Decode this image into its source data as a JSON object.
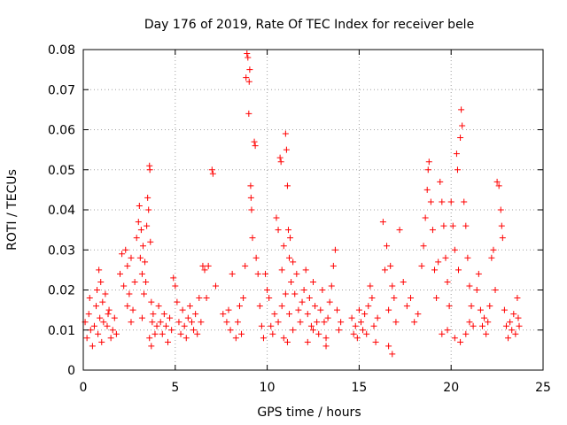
{
  "chart_data": {
    "type": "scatter",
    "title": "Day 176 of 2019, Rate Of TEC Index for receiver bele",
    "xlabel": "GPS time / hours",
    "ylabel": "ROTI / TECUs",
    "xlim": [
      0,
      25
    ],
    "ylim": [
      0,
      0.08
    ],
    "xticks": [
      0,
      5,
      10,
      15,
      20,
      25
    ],
    "yticks": [
      0,
      0.01,
      0.02,
      0.03,
      0.04,
      0.05,
      0.06,
      0.07,
      0.08
    ],
    "ytick_labels": [
      "0",
      "0.01",
      "0.02",
      "0.03",
      "0.04",
      "0.05",
      "0.06",
      "0.07",
      "0.08"
    ],
    "grid": true,
    "legend": "none",
    "marker": "+",
    "color": "#ff0000",
    "series": [
      {
        "points": [
          [
            0.1,
            0.012
          ],
          [
            0.2,
            0.008
          ],
          [
            0.3,
            0.014
          ],
          [
            0.4,
            0.01
          ],
          [
            0.5,
            0.006
          ],
          [
            0.6,
            0.011
          ],
          [
            0.7,
            0.016
          ],
          [
            0.8,
            0.009
          ],
          [
            0.9,
            0.013
          ],
          [
            1.0,
            0.007
          ],
          [
            1.1,
            0.012
          ],
          [
            1.2,
            0.019
          ],
          [
            1.3,
            0.011
          ],
          [
            1.4,
            0.015
          ],
          [
            1.5,
            0.008
          ],
          [
            1.6,
            0.01
          ],
          [
            1.7,
            0.013
          ],
          [
            1.8,
            0.009
          ],
          [
            0.35,
            0.018
          ],
          [
            0.75,
            0.02
          ],
          [
            0.85,
            0.025
          ],
          [
            0.95,
            0.022
          ],
          [
            1.05,
            0.017
          ],
          [
            1.35,
            0.014
          ],
          [
            2.0,
            0.024
          ],
          [
            2.1,
            0.029
          ],
          [
            2.2,
            0.021
          ],
          [
            2.3,
            0.03
          ],
          [
            2.4,
            0.026
          ],
          [
            2.5,
            0.019
          ],
          [
            2.6,
            0.028
          ],
          [
            2.7,
            0.015
          ],
          [
            2.8,
            0.022
          ],
          [
            2.9,
            0.033
          ],
          [
            3.0,
            0.037
          ],
          [
            3.05,
            0.041
          ],
          [
            3.1,
            0.028
          ],
          [
            3.15,
            0.035
          ],
          [
            3.2,
            0.024
          ],
          [
            3.25,
            0.031
          ],
          [
            3.3,
            0.019
          ],
          [
            3.35,
            0.027
          ],
          [
            3.4,
            0.022
          ],
          [
            3.45,
            0.036
          ],
          [
            3.5,
            0.043
          ],
          [
            3.55,
            0.04
          ],
          [
            3.6,
            0.051
          ],
          [
            3.62,
            0.05
          ],
          [
            3.65,
            0.032
          ],
          [
            3.7,
            0.017
          ],
          [
            3.75,
            0.012
          ],
          [
            3.8,
            0.014
          ],
          [
            3.9,
            0.009
          ],
          [
            4.0,
            0.011
          ],
          [
            3.2,
            0.013
          ],
          [
            2.6,
            0.012
          ],
          [
            2.4,
            0.016
          ],
          [
            3.6,
            0.008
          ],
          [
            3.7,
            0.006
          ],
          [
            4.1,
            0.016
          ],
          [
            4.2,
            0.012
          ],
          [
            4.3,
            0.009
          ],
          [
            4.4,
            0.014
          ],
          [
            4.5,
            0.011
          ],
          [
            4.6,
            0.007
          ],
          [
            4.7,
            0.013
          ],
          [
            4.8,
            0.01
          ],
          [
            4.9,
            0.023
          ],
          [
            5.0,
            0.021
          ],
          [
            5.1,
            0.017
          ],
          [
            5.2,
            0.012
          ],
          [
            5.3,
            0.009
          ],
          [
            5.4,
            0.015
          ],
          [
            5.5,
            0.011
          ],
          [
            5.6,
            0.008
          ],
          [
            5.7,
            0.013
          ],
          [
            5.8,
            0.016
          ],
          [
            5.9,
            0.012
          ],
          [
            6.0,
            0.01
          ],
          [
            6.1,
            0.014
          ],
          [
            6.2,
            0.009
          ],
          [
            6.3,
            0.018
          ],
          [
            6.4,
            0.012
          ],
          [
            6.5,
            0.026
          ],
          [
            6.6,
            0.025
          ],
          [
            6.7,
            0.018
          ],
          [
            6.8,
            0.026
          ],
          [
            7.0,
            0.05
          ],
          [
            7.05,
            0.049
          ],
          [
            7.2,
            0.021
          ],
          [
            7.6,
            0.014
          ],
          [
            7.8,
            0.012
          ],
          [
            7.9,
            0.015
          ],
          [
            8.0,
            0.01
          ],
          [
            8.1,
            0.024
          ],
          [
            8.3,
            0.008
          ],
          [
            8.4,
            0.012
          ],
          [
            8.5,
            0.016
          ],
          [
            8.6,
            0.009
          ],
          [
            8.7,
            0.018
          ],
          [
            8.8,
            0.026
          ],
          [
            8.85,
            0.073
          ],
          [
            8.9,
            0.079
          ],
          [
            8.95,
            0.078
          ],
          [
            9.0,
            0.064
          ],
          [
            9.02,
            0.072
          ],
          [
            9.05,
            0.075
          ],
          [
            9.1,
            0.046
          ],
          [
            9.12,
            0.043
          ],
          [
            9.15,
            0.04
          ],
          [
            9.2,
            0.033
          ],
          [
            9.3,
            0.057
          ],
          [
            9.35,
            0.056
          ],
          [
            9.4,
            0.028
          ],
          [
            9.5,
            0.024
          ],
          [
            9.6,
            0.016
          ],
          [
            9.7,
            0.011
          ],
          [
            9.8,
            0.008
          ],
          [
            9.9,
            0.024
          ],
          [
            10.0,
            0.02
          ],
          [
            10.1,
            0.018
          ],
          [
            10.2,
            0.011
          ],
          [
            10.3,
            0.009
          ],
          [
            10.4,
            0.014
          ],
          [
            10.5,
            0.038
          ],
          [
            10.6,
            0.035
          ],
          [
            10.7,
            0.053
          ],
          [
            10.75,
            0.052
          ],
          [
            10.8,
            0.025
          ],
          [
            10.9,
            0.031
          ],
          [
            11.0,
            0.059
          ],
          [
            11.05,
            0.055
          ],
          [
            11.1,
            0.046
          ],
          [
            11.15,
            0.035
          ],
          [
            11.2,
            0.028
          ],
          [
            11.25,
            0.033
          ],
          [
            11.3,
            0.022
          ],
          [
            11.4,
            0.027
          ],
          [
            11.5,
            0.019
          ],
          [
            11.6,
            0.024
          ],
          [
            11.7,
            0.015
          ],
          [
            11.8,
            0.012
          ],
          [
            11.9,
            0.017
          ],
          [
            10.6,
            0.012
          ],
          [
            10.8,
            0.016
          ],
          [
            11.0,
            0.019
          ],
          [
            11.2,
            0.014
          ],
          [
            11.4,
            0.01
          ],
          [
            10.9,
            0.008
          ],
          [
            11.1,
            0.007
          ],
          [
            12.0,
            0.02
          ],
          [
            12.1,
            0.025
          ],
          [
            12.2,
            0.014
          ],
          [
            12.3,
            0.018
          ],
          [
            12.4,
            0.011
          ],
          [
            12.5,
            0.022
          ],
          [
            12.6,
            0.016
          ],
          [
            12.7,
            0.012
          ],
          [
            12.8,
            0.009
          ],
          [
            12.9,
            0.015
          ],
          [
            13.0,
            0.02
          ],
          [
            13.1,
            0.012
          ],
          [
            13.2,
            0.008
          ],
          [
            13.3,
            0.013
          ],
          [
            13.4,
            0.017
          ],
          [
            13.5,
            0.021
          ],
          [
            13.6,
            0.026
          ],
          [
            13.7,
            0.03
          ],
          [
            13.8,
            0.015
          ],
          [
            13.9,
            0.01
          ],
          [
            14.0,
            0.012
          ],
          [
            13.2,
            0.006
          ],
          [
            12.5,
            0.01
          ],
          [
            12.2,
            0.007
          ],
          [
            14.6,
            0.013
          ],
          [
            14.7,
            0.009
          ],
          [
            14.8,
            0.011
          ],
          [
            14.9,
            0.008
          ],
          [
            15.0,
            0.015
          ],
          [
            15.1,
            0.012
          ],
          [
            15.2,
            0.01
          ],
          [
            15.3,
            0.014
          ],
          [
            15.4,
            0.009
          ],
          [
            15.5,
            0.016
          ],
          [
            15.6,
            0.021
          ],
          [
            15.7,
            0.018
          ],
          [
            15.8,
            0.011
          ],
          [
            15.9,
            0.007
          ],
          [
            16.0,
            0.013
          ],
          [
            16.3,
            0.037
          ],
          [
            16.4,
            0.025
          ],
          [
            16.5,
            0.031
          ],
          [
            16.6,
            0.015
          ],
          [
            16.7,
            0.026
          ],
          [
            16.8,
            0.021
          ],
          [
            16.9,
            0.018
          ],
          [
            17.0,
            0.012
          ],
          [
            16.6,
            0.006
          ],
          [
            16.8,
            0.004
          ],
          [
            17.2,
            0.035
          ],
          [
            17.4,
            0.022
          ],
          [
            17.6,
            0.016
          ],
          [
            17.8,
            0.018
          ],
          [
            18.0,
            0.012
          ],
          [
            18.2,
            0.014
          ],
          [
            18.4,
            0.026
          ],
          [
            18.5,
            0.031
          ],
          [
            18.6,
            0.038
          ],
          [
            18.7,
            0.045
          ],
          [
            18.75,
            0.05
          ],
          [
            18.8,
            0.052
          ],
          [
            18.9,
            0.042
          ],
          [
            19.0,
            0.035
          ],
          [
            19.1,
            0.025
          ],
          [
            19.2,
            0.018
          ],
          [
            19.3,
            0.027
          ],
          [
            19.4,
            0.047
          ],
          [
            19.5,
            0.042
          ],
          [
            19.6,
            0.036
          ],
          [
            19.7,
            0.028
          ],
          [
            19.8,
            0.022
          ],
          [
            19.9,
            0.016
          ],
          [
            20.0,
            0.042
          ],
          [
            20.1,
            0.036
          ],
          [
            20.2,
            0.03
          ],
          [
            20.3,
            0.054
          ],
          [
            20.35,
            0.05
          ],
          [
            20.4,
            0.025
          ],
          [
            20.5,
            0.058
          ],
          [
            20.55,
            0.065
          ],
          [
            20.6,
            0.061
          ],
          [
            20.7,
            0.042
          ],
          [
            20.8,
            0.036
          ],
          [
            20.9,
            0.028
          ],
          [
            21.0,
            0.021
          ],
          [
            21.1,
            0.016
          ],
          [
            21.2,
            0.011
          ],
          [
            19.5,
            0.009
          ],
          [
            19.8,
            0.01
          ],
          [
            20.2,
            0.008
          ],
          [
            20.5,
            0.007
          ],
          [
            20.8,
            0.009
          ],
          [
            21.0,
            0.012
          ],
          [
            21.4,
            0.02
          ],
          [
            21.5,
            0.024
          ],
          [
            21.6,
            0.015
          ],
          [
            21.7,
            0.011
          ],
          [
            21.8,
            0.013
          ],
          [
            21.9,
            0.009
          ],
          [
            22.0,
            0.012
          ],
          [
            22.1,
            0.016
          ],
          [
            22.2,
            0.028
          ],
          [
            22.3,
            0.03
          ],
          [
            22.4,
            0.02
          ],
          [
            22.5,
            0.047
          ],
          [
            22.6,
            0.046
          ],
          [
            22.7,
            0.04
          ],
          [
            22.75,
            0.036
          ],
          [
            22.8,
            0.033
          ],
          [
            22.9,
            0.015
          ],
          [
            23.0,
            0.011
          ],
          [
            23.1,
            0.008
          ],
          [
            23.2,
            0.012
          ],
          [
            23.3,
            0.01
          ],
          [
            23.4,
            0.014
          ],
          [
            23.5,
            0.009
          ],
          [
            23.6,
            0.018
          ],
          [
            23.65,
            0.013
          ],
          [
            23.7,
            0.011
          ]
        ]
      }
    ]
  }
}
